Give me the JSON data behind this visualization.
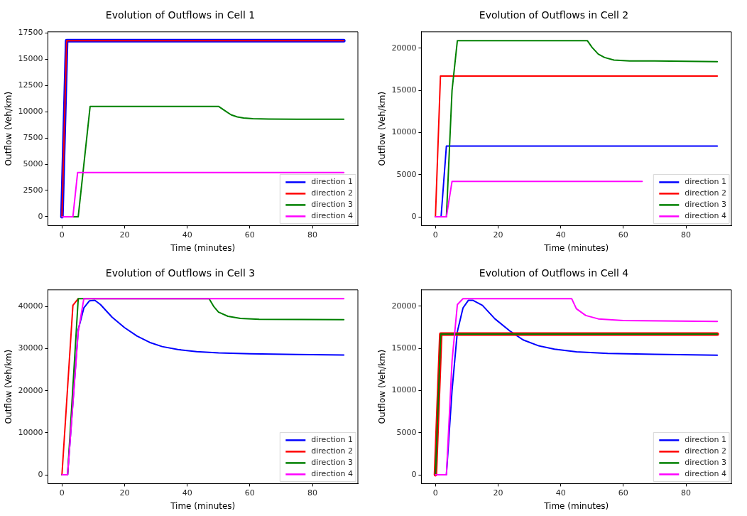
{
  "chart_data": [
    {
      "type": "line",
      "title": "Evolution of Outflows in Cell 1",
      "xlabel": "Time (minutes)",
      "ylabel": "Outflow (Veh/km)",
      "xlim": [
        -4.5,
        94.5
      ],
      "xticks": [
        0,
        20,
        40,
        60,
        80
      ],
      "ylim": [
        -840,
        17590
      ],
      "yticks": [
        0,
        2500,
        5000,
        7500,
        10000,
        12500,
        15000,
        17500
      ],
      "grid": false,
      "legend": "bottom right",
      "marker": "none",
      "line_style": "solid",
      "series": [
        {
          "name": "direction 1",
          "color": "#0000ff",
          "x": [
            0,
            1.5,
            90
          ],
          "values": [
            0,
            16750,
            16750
          ]
        },
        {
          "name": "direction 2",
          "color": "#ff0000",
          "x": [
            0,
            1.5,
            90
          ],
          "values": [
            0,
            16750,
            16750
          ]
        },
        {
          "name": "direction 3",
          "color": "#008000",
          "x": [
            0,
            5.2,
            9,
            50,
            52,
            54,
            56,
            58,
            61,
            66,
            75,
            90
          ],
          "values": [
            0,
            0,
            10500,
            10500,
            10100,
            9700,
            9500,
            9400,
            9330,
            9300,
            9280,
            9270
          ]
        },
        {
          "name": "direction 4",
          "color": "#ff00ff",
          "x": [
            0,
            3.5,
            5,
            90
          ],
          "values": [
            0,
            0,
            4200,
            4200
          ]
        }
      ]
    },
    {
      "type": "line",
      "title": "Evolution of Outflows in Cell 2",
      "xlabel": "Time (minutes)",
      "ylabel": "Outflow (Veh/km)",
      "xlim": [
        -4.5,
        94.5
      ],
      "xticks": [
        0,
        20,
        40,
        60,
        80
      ],
      "ylim": [
        -1045,
        21945
      ],
      "yticks": [
        0,
        5000,
        10000,
        15000,
        20000
      ],
      "grid": false,
      "legend": "bottom right",
      "marker": "none",
      "line_style": "solid",
      "series": [
        {
          "name": "direction 1",
          "color": "#0000ff",
          "x": [
            0,
            1.8,
            3.5,
            90
          ],
          "values": [
            0,
            0,
            8400,
            8400
          ]
        },
        {
          "name": "direction 2",
          "color": "#ff0000",
          "x": [
            0,
            1.6,
            90
          ],
          "values": [
            0,
            16700,
            16700
          ]
        },
        {
          "name": "direction 3",
          "color": "#008000",
          "x": [
            0,
            3.5,
            5.3,
            7,
            48.5,
            50,
            52,
            54,
            57,
            62,
            70,
            90
          ],
          "values": [
            0,
            0,
            15000,
            20900,
            20900,
            20100,
            19300,
            18900,
            18600,
            18500,
            18500,
            18400
          ]
        },
        {
          "name": "direction 4",
          "color": "#ff00ff",
          "x": [
            0,
            3.5,
            5.3,
            66
          ],
          "values": [
            0,
            0,
            4200,
            4200
          ]
        }
      ]
    },
    {
      "type": "line",
      "title": "Evolution of Outflows in Cell 3",
      "xlabel": "Time (minutes)",
      "ylabel": "Outflow (Veh/km)",
      "xlim": [
        -4.5,
        94.5
      ],
      "xticks": [
        0,
        20,
        40,
        60,
        80
      ],
      "ylim": [
        -2095,
        43995
      ],
      "yticks": [
        0,
        10000,
        20000,
        30000,
        40000
      ],
      "grid": false,
      "legend": "bottom right",
      "marker": "none",
      "line_style": "solid",
      "series": [
        {
          "name": "direction 1",
          "color": "#0000ff",
          "x": [
            0,
            1.8,
            5.2,
            7,
            8.8,
            10.5,
            12.3,
            16,
            20,
            24,
            28,
            32,
            37,
            43,
            50,
            60,
            75,
            90
          ],
          "values": [
            0,
            0,
            34500,
            39700,
            41400,
            41500,
            40500,
            37500,
            35000,
            33000,
            31500,
            30500,
            29800,
            29300,
            29000,
            28800,
            28600,
            28500
          ]
        },
        {
          "name": "direction 2",
          "color": "#ff0000",
          "x": [
            0,
            3.5,
            5.2
          ],
          "values": [
            0,
            40300,
            41900
          ]
        },
        {
          "name": "direction 3",
          "color": "#008000",
          "x": [
            0,
            1.8,
            5.2,
            47,
            48.5,
            50,
            53,
            57,
            63,
            90
          ],
          "values": [
            0,
            0,
            41900,
            41900,
            40000,
            38700,
            37700,
            37200,
            37000,
            36900
          ]
        },
        {
          "name": "direction 4",
          "color": "#ff00ff",
          "x": [
            0,
            1.8,
            5.2,
            7,
            90
          ],
          "values": [
            0,
            0,
            34000,
            41900,
            41900
          ]
        }
      ]
    },
    {
      "type": "line",
      "title": "Evolution of Outflows in Cell 4",
      "xlabel": "Time (minutes)",
      "ylabel": "Outflow (Veh/km)",
      "xlim": [
        -4.5,
        94.5
      ],
      "xticks": [
        0,
        20,
        40,
        60,
        80
      ],
      "ylim": [
        -1045,
        21945
      ],
      "yticks": [
        0,
        5000,
        10000,
        15000,
        20000
      ],
      "grid": false,
      "legend": "bottom right",
      "marker": "none",
      "line_style": "solid",
      "series": [
        {
          "name": "direction 1",
          "color": "#0000ff",
          "x": [
            0,
            3.5,
            5.3,
            7,
            8.8,
            10.5,
            12,
            15,
            19,
            24,
            28,
            33,
            38,
            45,
            55,
            70,
            90
          ],
          "values": [
            0,
            0,
            10000,
            17000,
            19800,
            20700,
            20700,
            20100,
            18500,
            17000,
            16000,
            15300,
            14900,
            14600,
            14400,
            14300,
            14200
          ]
        },
        {
          "name": "direction 2",
          "color": "#ff0000",
          "x": [
            0,
            1.7,
            90
          ],
          "values": [
            0,
            16700,
            16700
          ]
        },
        {
          "name": "direction 3",
          "color": "#008000",
          "x": [
            0,
            1.7,
            90
          ],
          "values": [
            0,
            16700,
            16700
          ]
        },
        {
          "name": "direction 4",
          "color": "#ff00ff",
          "x": [
            0,
            3.5,
            5.3,
            7,
            8.8,
            43.5,
            45,
            48,
            52,
            60,
            90
          ],
          "values": [
            0,
            0,
            13500,
            20200,
            20900,
            20900,
            19700,
            18900,
            18500,
            18300,
            18200
          ]
        }
      ]
    }
  ]
}
